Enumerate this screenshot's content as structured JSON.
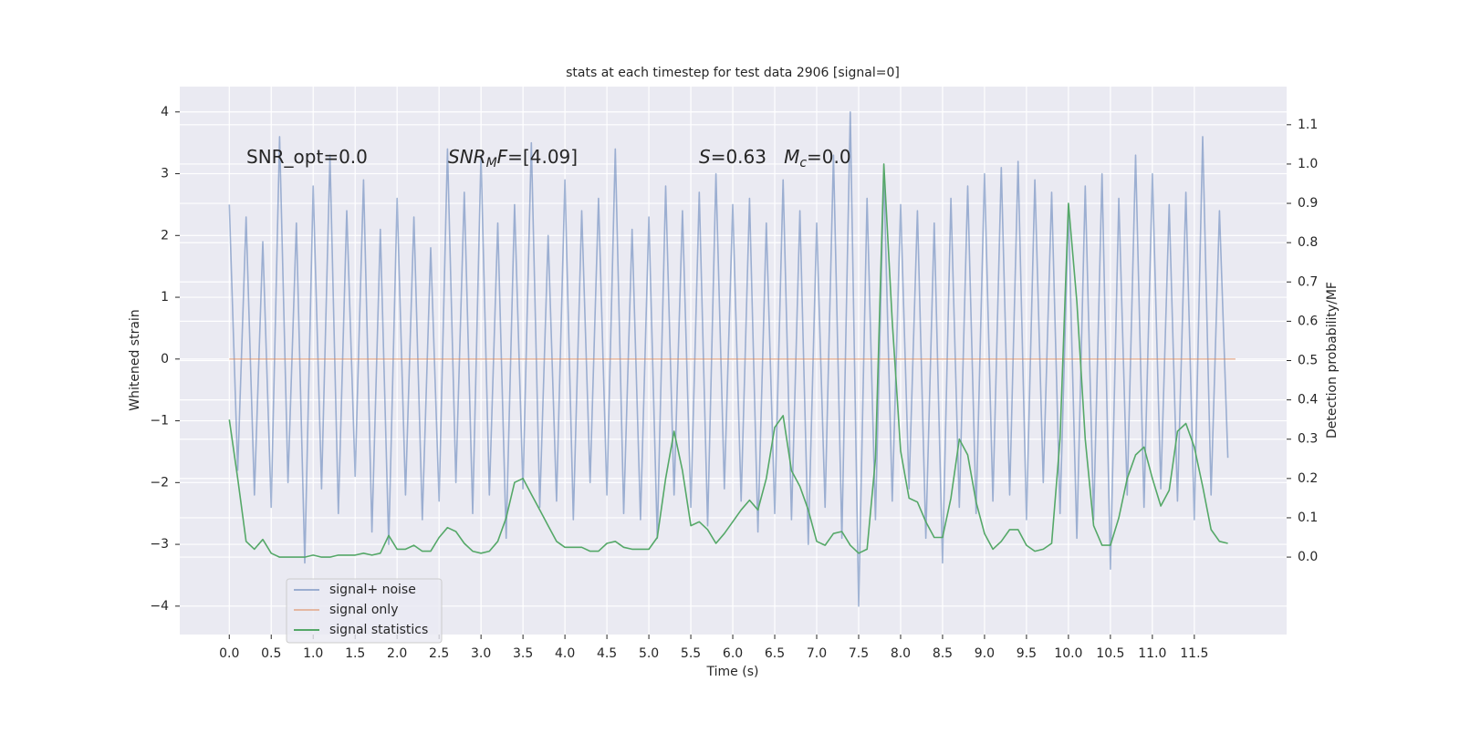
{
  "chart_data": {
    "type": "line",
    "title": "stats at each timestep for test data 2906 [signal=0]",
    "xlabel": "Time (s)",
    "ylabel": "Whitened strain",
    "y2label": "Detection probability/MF",
    "xlim": [
      -0.59,
      12.6
    ],
    "ylim": [
      -4.46,
      4.41
    ],
    "y2lim": [
      -0.197,
      1.197
    ],
    "xticks": [
      {
        "value": 0,
        "label": "0.0"
      },
      0.5,
      {
        "value": 1,
        "label": "1.0"
      },
      1.5,
      {
        "value": 2,
        "label": "2.0"
      },
      2.5,
      {
        "value": 3,
        "label": "3.0"
      },
      3.5,
      {
        "value": 4,
        "label": "4.0"
      },
      4.5,
      {
        "value": 5,
        "label": "5.0"
      },
      5.5,
      {
        "value": 6,
        "label": "6.0"
      },
      6.5,
      {
        "value": 7,
        "label": "7.0"
      },
      7.5,
      {
        "value": 8,
        "label": "8.0"
      },
      8.5,
      {
        "value": 9,
        "label": "9.0"
      },
      9.5,
      {
        "value": 10,
        "label": "10.0"
      },
      10.5,
      {
        "value": 11,
        "label": "11.0"
      },
      11.5
    ],
    "yticks": [
      {
        "value": -4,
        "label": "−4"
      },
      {
        "value": -3,
        "label": "−3"
      },
      {
        "value": -2,
        "label": "−2"
      },
      {
        "value": -1,
        "label": "−1"
      },
      0,
      1,
      2,
      3,
      4
    ],
    "y2ticks": [
      {
        "value": 0,
        "label": "0.0"
      },
      0.1,
      0.2,
      0.3,
      0.4,
      0.5,
      0.6,
      0.7,
      0.8,
      0.9,
      {
        "value": 1,
        "label": "1.0"
      },
      1.1
    ],
    "grid": true,
    "legend": "lower left",
    "annotations": [
      [
        {
          "text": "SNR_opt=0.0"
        }
      ],
      [
        {
          "text": "SNR",
          "style": "italic"
        },
        {
          "text": "M",
          "style": "italic-sub"
        },
        {
          "text": "F",
          "style": "italic"
        },
        {
          "text": "=[4.09]"
        }
      ],
      [
        {
          "text": "S",
          "style": "italic"
        },
        {
          "text": "=0.63   "
        },
        {
          "text": "M",
          "style": "italic"
        },
        {
          "text": "c",
          "style": "italic-sub"
        },
        {
          "text": "=0.0"
        }
      ]
    ],
    "series": [
      {
        "name": "signal+ noise",
        "color": "#4c72b0",
        "opacity": 0.5,
        "x": [
          0,
          0.1,
          0.2,
          0.3,
          0.4,
          0.5,
          0.6,
          0.7,
          0.8,
          0.9,
          1,
          1.1,
          1.2,
          1.3,
          1.4,
          1.5,
          1.6,
          1.7,
          1.8,
          1.9,
          2,
          2.1,
          2.2,
          2.3,
          2.4,
          2.5,
          2.6,
          2.7,
          2.8,
          2.9,
          3,
          3.1,
          3.2,
          3.3,
          3.4,
          3.5,
          3.6,
          3.7,
          3.8,
          3.9,
          4,
          4.1,
          4.2,
          4.3,
          4.4,
          4.5,
          4.6,
          4.7,
          4.8,
          4.9,
          5,
          5.1,
          5.2,
          5.3,
          5.4,
          5.5,
          5.6,
          5.7,
          5.8,
          5.9,
          6,
          6.1,
          6.2,
          6.3,
          6.4,
          6.5,
          6.6,
          6.7,
          6.8,
          6.9,
          7,
          7.1,
          7.2,
          7.3,
          7.4,
          7.5,
          7.6,
          7.7,
          7.8,
          7.9,
          8,
          8.1,
          8.2,
          8.3,
          8.4,
          8.5,
          8.6,
          8.7,
          8.8,
          8.9,
          9,
          9.1,
          9.2,
          9.3,
          9.4,
          9.5,
          9.6,
          9.7,
          9.8,
          9.9,
          10,
          10.1,
          10.2,
          10.3,
          10.4,
          10.5,
          10.6,
          10.7,
          10.8,
          10.9,
          11,
          11.1,
          11.2,
          11.3,
          11.4,
          11.5,
          11.6,
          11.7,
          11.8,
          11.9
        ],
        "values": [
          2.5,
          -1.8,
          2.3,
          -2.2,
          1.9,
          -2.4,
          3.6,
          -2.0,
          2.2,
          -3.3,
          2.8,
          -2.1,
          3.3,
          -2.5,
          2.4,
          -1.9,
          2.9,
          -2.8,
          2.1,
          -3.0,
          2.6,
          -2.2,
          2.3,
          -2.6,
          1.8,
          -2.3,
          3.4,
          -2.0,
          2.7,
          -2.5,
          3.3,
          -2.2,
          2.2,
          -2.9,
          2.5,
          -2.1,
          3.5,
          -2.4,
          2.0,
          -2.3,
          2.9,
          -2.6,
          2.4,
          -2.0,
          2.6,
          -2.2,
          3.4,
          -2.5,
          2.1,
          -2.6,
          2.3,
          -2.9,
          2.8,
          -2.2,
          2.4,
          -2.4,
          2.7,
          -2.7,
          3.0,
          -2.1,
          2.5,
          -2.3,
          2.6,
          -2.8,
          2.2,
          -2.5,
          2.9,
          -2.6,
          2.4,
          -3.0,
          2.2,
          -2.4,
          3.3,
          -2.9,
          4.0,
          -4.0,
          2.6,
          -2.6,
          3.0,
          -2.3,
          2.5,
          -2.1,
          2.4,
          -2.9,
          2.2,
          -3.3,
          2.6,
          -2.4,
          2.8,
          -2.5,
          3.0,
          -2.3,
          3.1,
          -2.2,
          3.2,
          -2.6,
          2.9,
          -2.0,
          2.7,
          -2.5,
          2.4,
          -2.9,
          2.8,
          -2.6,
          3.0,
          -3.4,
          2.6,
          -2.2,
          3.3,
          -2.4,
          3.0,
          -2.1,
          2.5,
          -2.3,
          2.7,
          -2.6,
          3.6,
          -2.2,
          2.4,
          -1.6
        ]
      },
      {
        "name": "signal only",
        "color": "#dd8452",
        "opacity": 0.5,
        "x": [
          0,
          11.99
        ],
        "values": [
          0,
          0
        ]
      },
      {
        "name": "signal statistics",
        "color": "#55a868",
        "axis": "y2",
        "x": [
          0,
          0.1,
          0.2,
          0.3,
          0.4,
          0.5,
          0.6,
          0.7,
          0.8,
          0.9,
          1,
          1.1,
          1.2,
          1.3,
          1.4,
          1.5,
          1.6,
          1.7,
          1.8,
          1.9,
          2,
          2.1,
          2.2,
          2.3,
          2.4,
          2.5,
          2.6,
          2.7,
          2.8,
          2.9,
          3,
          3.1,
          3.2,
          3.3,
          3.4,
          3.5,
          3.6,
          3.7,
          3.8,
          3.9,
          4,
          4.1,
          4.2,
          4.3,
          4.4,
          4.5,
          4.6,
          4.7,
          4.8,
          4.9,
          5,
          5.1,
          5.2,
          5.3,
          5.4,
          5.5,
          5.6,
          5.7,
          5.8,
          5.9,
          6,
          6.1,
          6.2,
          6.3,
          6.4,
          6.5,
          6.6,
          6.7,
          6.8,
          6.9,
          7,
          7.1,
          7.2,
          7.3,
          7.4,
          7.5,
          7.6,
          7.7,
          7.8,
          7.9,
          8,
          8.1,
          8.2,
          8.3,
          8.4,
          8.5,
          8.6,
          8.7,
          8.8,
          8.9,
          9,
          9.1,
          9.2,
          9.3,
          9.4,
          9.5,
          9.6,
          9.7,
          9.8,
          9.9,
          10,
          10.1,
          10.2,
          10.3,
          10.4,
          10.5,
          10.6,
          10.7,
          10.8,
          10.9,
          11,
          11.1,
          11.2,
          11.3,
          11.4,
          11.5,
          11.6,
          11.7,
          11.8,
          11.9
        ],
        "values": [
          0.35,
          0.2,
          0.04,
          0.02,
          0.045,
          0.01,
          0.0,
          0.0,
          0.0,
          0.0,
          0.005,
          0.0,
          0.0,
          0.005,
          0.005,
          0.005,
          0.01,
          0.005,
          0.01,
          0.055,
          0.02,
          0.02,
          0.03,
          0.015,
          0.015,
          0.05,
          0.075,
          0.065,
          0.035,
          0.015,
          0.01,
          0.015,
          0.04,
          0.1,
          0.19,
          0.2,
          0.16,
          0.12,
          0.08,
          0.04,
          0.025,
          0.025,
          0.025,
          0.015,
          0.015,
          0.035,
          0.04,
          0.025,
          0.02,
          0.02,
          0.02,
          0.05,
          0.2,
          0.32,
          0.22,
          0.08,
          0.09,
          0.07,
          0.035,
          0.06,
          0.09,
          0.12,
          0.145,
          0.12,
          0.2,
          0.33,
          0.36,
          0.22,
          0.18,
          0.12,
          0.04,
          0.03,
          0.06,
          0.065,
          0.03,
          0.01,
          0.02,
          0.25,
          1.0,
          0.6,
          0.27,
          0.15,
          0.14,
          0.09,
          0.05,
          0.05,
          0.15,
          0.3,
          0.26,
          0.14,
          0.06,
          0.02,
          0.04,
          0.07,
          0.07,
          0.03,
          0.015,
          0.02,
          0.035,
          0.3,
          0.9,
          0.65,
          0.3,
          0.08,
          0.03,
          0.03,
          0.1,
          0.2,
          0.26,
          0.28,
          0.2,
          0.13,
          0.17,
          0.32,
          0.34,
          0.28,
          0.18,
          0.07,
          0.04,
          0.035
        ]
      }
    ]
  }
}
